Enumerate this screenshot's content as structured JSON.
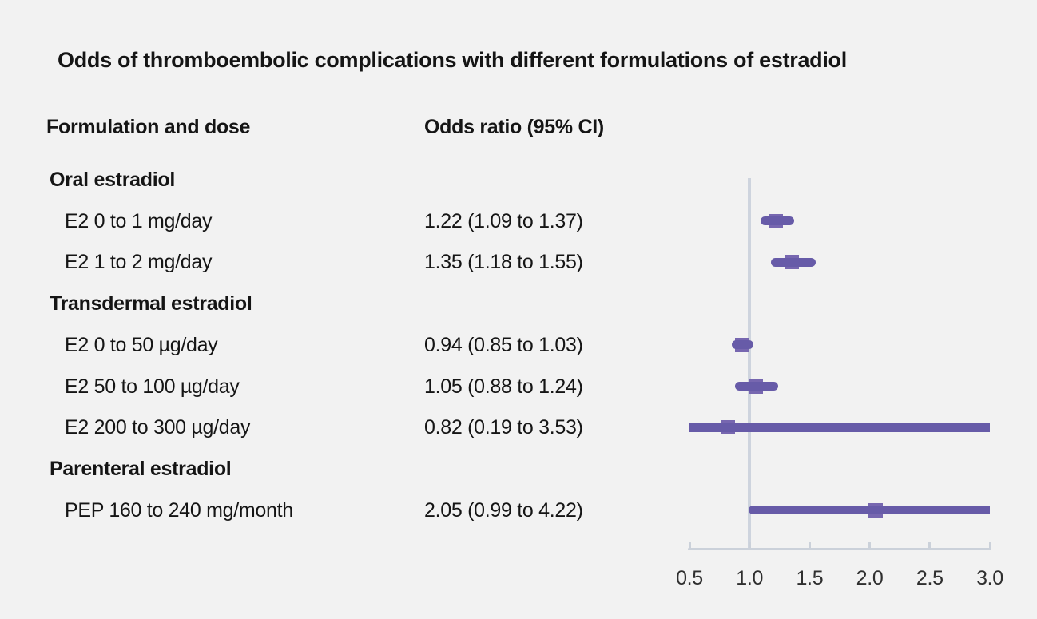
{
  "title": "Odds of thromboembolic complications with different formulations of estradiol",
  "columns": {
    "formulation": "Formulation and dose",
    "odds_ratio": "Odds ratio (95% CI)"
  },
  "colors": {
    "background": "#f2f2f2",
    "text": "#151515",
    "ci_line": "#675ba8",
    "marker": "#7767b0",
    "reference_line": "#ced4de",
    "axis": "#cbd1da"
  },
  "chart_data": {
    "type": "forest",
    "title": "Odds of thromboembolic complications with different formulations of estradiol",
    "xlabel": "Odds ratio",
    "xlim": [
      0.5,
      3.0
    ],
    "x_ticks": [
      0.5,
      1.0,
      1.5,
      2.0,
      2.5,
      3.0
    ],
    "x_tick_labels": [
      "0.5",
      "1.0",
      "1.5",
      "2.0",
      "2.5",
      "3.0"
    ],
    "reference_line": 1.0,
    "grid": false,
    "rows": [
      {
        "type": "section",
        "label": "Oral estradiol"
      },
      {
        "type": "item",
        "label": "E2 0 to 1 mg/day",
        "value_text": "1.22 (1.09 to 1.37)",
        "estimate": 1.22,
        "ci_low": 1.09,
        "ci_high": 1.37
      },
      {
        "type": "item",
        "label": "E2 1 to 2 mg/day",
        "value_text": "1.35 (1.18 to 1.55)",
        "estimate": 1.35,
        "ci_low": 1.18,
        "ci_high": 1.55
      },
      {
        "type": "section",
        "label": "Transdermal estradiol"
      },
      {
        "type": "item",
        "label": "E2 0 to 50 µg/day",
        "value_text": "0.94 (0.85 to 1.03)",
        "estimate": 0.94,
        "ci_low": 0.85,
        "ci_high": 1.03
      },
      {
        "type": "item",
        "label": "E2 50 to 100 µg/day",
        "value_text": "1.05 (0.88 to 1.24)",
        "estimate": 1.05,
        "ci_low": 0.88,
        "ci_high": 1.24
      },
      {
        "type": "item",
        "label": "E2 200 to 300 µg/day",
        "value_text": "0.82 (0.19 to 3.53)",
        "estimate": 0.82,
        "ci_low": 0.19,
        "ci_high": 3.53
      },
      {
        "type": "section",
        "label": "Parenteral estradiol"
      },
      {
        "type": "item",
        "label": "PEP 160 to 240 mg/month",
        "value_text": "2.05 (0.99 to 4.22)",
        "estimate": 2.05,
        "ci_low": 0.99,
        "ci_high": 4.22
      }
    ]
  }
}
